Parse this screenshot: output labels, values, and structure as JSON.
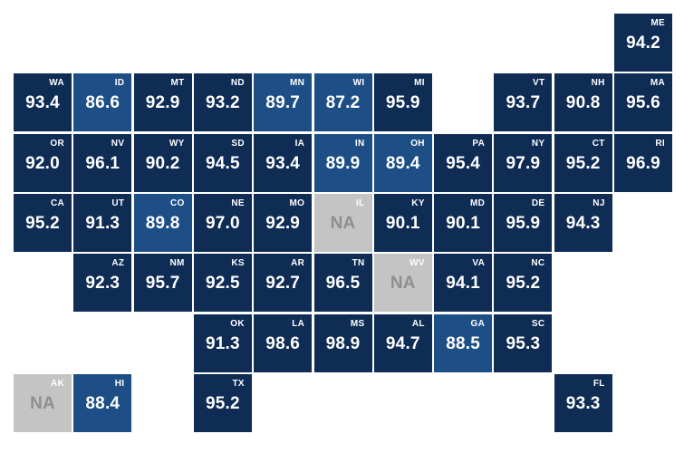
{
  "colors": {
    "dark": "#0f2c55",
    "mid": "#1d4f86",
    "na": "#c4c4c4",
    "na_text": "#8f8f8f",
    "text": "#ffffff"
  },
  "states": [
    {
      "abbr": "ME",
      "value": "94.2",
      "shade": "dark"
    },
    {
      "abbr": "WA",
      "value": "93.4",
      "shade": "dark"
    },
    {
      "abbr": "ID",
      "value": "86.6",
      "shade": "mid"
    },
    {
      "abbr": "MT",
      "value": "92.9",
      "shade": "dark"
    },
    {
      "abbr": "ND",
      "value": "93.2",
      "shade": "dark"
    },
    {
      "abbr": "MN",
      "value": "89.7",
      "shade": "mid"
    },
    {
      "abbr": "WI",
      "value": "87.2",
      "shade": "mid"
    },
    {
      "abbr": "MI",
      "value": "95.9",
      "shade": "dark"
    },
    {
      "abbr": "VT",
      "value": "93.7",
      "shade": "dark"
    },
    {
      "abbr": "NH",
      "value": "90.8",
      "shade": "dark"
    },
    {
      "abbr": "MA",
      "value": "95.6",
      "shade": "dark"
    },
    {
      "abbr": "OR",
      "value": "92.0",
      "shade": "dark"
    },
    {
      "abbr": "NV",
      "value": "96.1",
      "shade": "dark"
    },
    {
      "abbr": "WY",
      "value": "90.2",
      "shade": "dark"
    },
    {
      "abbr": "SD",
      "value": "94.5",
      "shade": "dark"
    },
    {
      "abbr": "IA",
      "value": "93.4",
      "shade": "dark"
    },
    {
      "abbr": "IN",
      "value": "89.9",
      "shade": "mid"
    },
    {
      "abbr": "OH",
      "value": "89.4",
      "shade": "mid"
    },
    {
      "abbr": "PA",
      "value": "95.4",
      "shade": "dark"
    },
    {
      "abbr": "NY",
      "value": "97.9",
      "shade": "dark"
    },
    {
      "abbr": "CT",
      "value": "95.2",
      "shade": "dark"
    },
    {
      "abbr": "RI",
      "value": "96.9",
      "shade": "dark"
    },
    {
      "abbr": "CA",
      "value": "95.2",
      "shade": "dark"
    },
    {
      "abbr": "UT",
      "value": "91.3",
      "shade": "dark"
    },
    {
      "abbr": "CO",
      "value": "89.8",
      "shade": "mid"
    },
    {
      "abbr": "NE",
      "value": "97.0",
      "shade": "dark"
    },
    {
      "abbr": "MO",
      "value": "92.9",
      "shade": "dark"
    },
    {
      "abbr": "IL",
      "value": "NA",
      "shade": "na"
    },
    {
      "abbr": "KY",
      "value": "90.1",
      "shade": "dark"
    },
    {
      "abbr": "MD",
      "value": "90.1",
      "shade": "dark"
    },
    {
      "abbr": "DE",
      "value": "95.9",
      "shade": "dark"
    },
    {
      "abbr": "NJ",
      "value": "94.3",
      "shade": "dark"
    },
    {
      "abbr": "AZ",
      "value": "92.3",
      "shade": "dark"
    },
    {
      "abbr": "NM",
      "value": "95.7",
      "shade": "dark"
    },
    {
      "abbr": "KS",
      "value": "92.5",
      "shade": "dark"
    },
    {
      "abbr": "AR",
      "value": "92.7",
      "shade": "dark"
    },
    {
      "abbr": "TN",
      "value": "96.5",
      "shade": "dark"
    },
    {
      "abbr": "WV",
      "value": "NA",
      "shade": "na"
    },
    {
      "abbr": "VA",
      "value": "94.1",
      "shade": "dark"
    },
    {
      "abbr": "NC",
      "value": "95.2",
      "shade": "dark"
    },
    {
      "abbr": "OK",
      "value": "91.3",
      "shade": "dark"
    },
    {
      "abbr": "LA",
      "value": "98.6",
      "shade": "dark"
    },
    {
      "abbr": "MS",
      "value": "98.9",
      "shade": "dark"
    },
    {
      "abbr": "AL",
      "value": "94.7",
      "shade": "dark"
    },
    {
      "abbr": "GA",
      "value": "88.5",
      "shade": "mid"
    },
    {
      "abbr": "SC",
      "value": "95.3",
      "shade": "dark"
    },
    {
      "abbr": "AK",
      "value": "NA",
      "shade": "na"
    },
    {
      "abbr": "HI",
      "value": "88.4",
      "shade": "mid"
    },
    {
      "abbr": "TX",
      "value": "95.2",
      "shade": "dark"
    },
    {
      "abbr": "FL",
      "value": "93.3",
      "shade": "dark"
    }
  ]
}
